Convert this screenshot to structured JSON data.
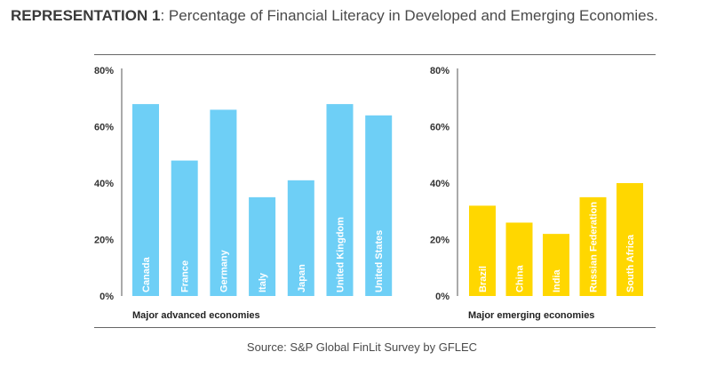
{
  "title": {
    "prefix": "REPRESENTATION 1",
    "text": ": Percentage of Financial Literacy in Developed and Emerging Economies."
  },
  "source": "Source: S&P Global FinLit Survey by GFLEC",
  "colors": {
    "advanced": "#6ECFF6",
    "emerging": "#FFD700",
    "axis": "#555555"
  },
  "chart_data": [
    {
      "type": "bar",
      "title": "",
      "xlabel": "Major advanced economies",
      "ylabel": "",
      "ylim": [
        0,
        80
      ],
      "yticks": [
        "0%",
        "20%",
        "40%",
        "60%",
        "80%"
      ],
      "categories": [
        "Canada",
        "France",
        "Germany",
        "Italy",
        "Japan",
        "United Kingdom",
        "United States"
      ],
      "values": [
        68,
        48,
        66,
        35,
        41,
        68,
        64
      ]
    },
    {
      "type": "bar",
      "title": "",
      "xlabel": "Major emerging economies",
      "ylabel": "",
      "ylim": [
        0,
        80
      ],
      "yticks": [
        "0%",
        "20%",
        "40%",
        "60%",
        "80%"
      ],
      "categories": [
        "Brazil",
        "China",
        "India",
        "Russian Federation",
        "South Africa"
      ],
      "values": [
        32,
        26,
        22,
        35,
        40
      ]
    }
  ]
}
